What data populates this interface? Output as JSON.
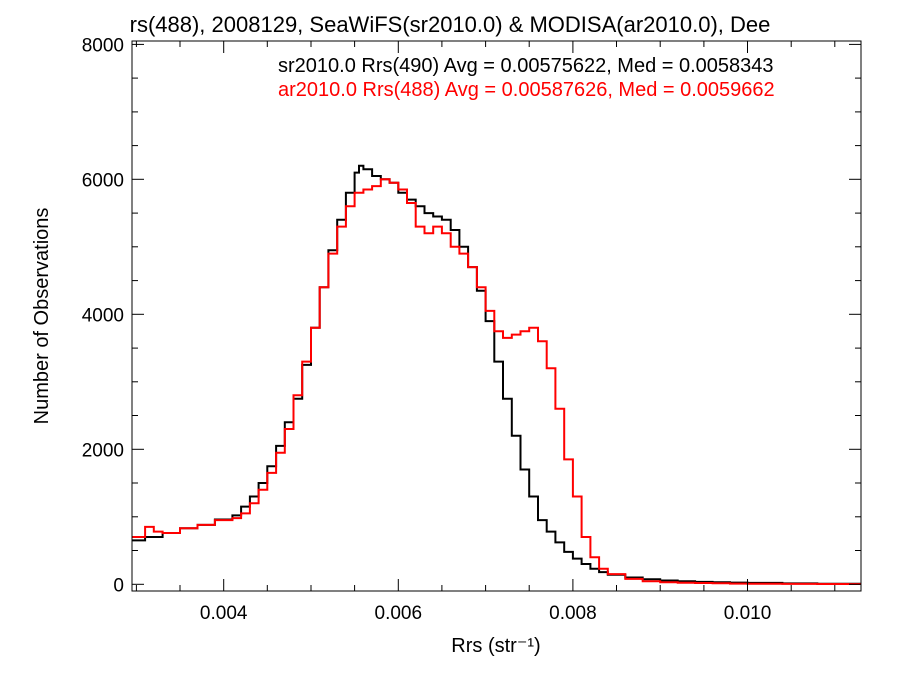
{
  "chart_data": {
    "type": "line",
    "title": "rs(488), 2008129, SeaWiFS(sr2010.0) & MODISA(ar2010.0), Dee",
    "xlabel": "Rrs (str⁻¹)",
    "ylabel": "Number of Observations",
    "xlim": [
      0.00295,
      0.0113
    ],
    "ylim": [
      -100,
      8050
    ],
    "xticks": [
      0.004,
      0.006,
      0.008,
      0.01
    ],
    "xtick_labels": [
      "0.004",
      "0.006",
      "0.008",
      "0.010"
    ],
    "yticks": [
      0,
      2000,
      4000,
      6000,
      8000
    ],
    "ytick_labels": [
      "0",
      "2000",
      "4000",
      "6000",
      "8000"
    ],
    "grid": false,
    "legend_placement": "top-right",
    "series": [
      {
        "name": "sr2010.0 Rrs(490) Avg = 0.00575622, Med = 0.0058343",
        "color": "#000000",
        "x": [
          0.00295,
          0.0031,
          0.0033,
          0.0035,
          0.0037,
          0.0039,
          0.0041,
          0.0042,
          0.0043,
          0.0044,
          0.0045,
          0.0046,
          0.0047,
          0.0048,
          0.0049,
          0.005,
          0.0051,
          0.0052,
          0.0053,
          0.0054,
          0.0055,
          0.00555,
          0.0056,
          0.0057,
          0.0058,
          0.0059,
          0.006,
          0.0061,
          0.0062,
          0.0063,
          0.0064,
          0.0065,
          0.0066,
          0.0067,
          0.0068,
          0.0069,
          0.007,
          0.0071,
          0.0072,
          0.0073,
          0.0074,
          0.0075,
          0.0076,
          0.0077,
          0.0078,
          0.0079,
          0.008,
          0.0081,
          0.0082,
          0.0083,
          0.0084,
          0.0086,
          0.0088,
          0.009,
          0.0092,
          0.0094,
          0.0096,
          0.0098,
          0.01,
          0.0104,
          0.0108,
          0.0113
        ],
        "y": [
          650,
          700,
          760,
          830,
          880,
          960,
          1020,
          1150,
          1300,
          1500,
          1750,
          2050,
          2400,
          2750,
          3250,
          3800,
          4400,
          4950,
          5400,
          5800,
          6100,
          6200,
          6150,
          6050,
          6000,
          5950,
          5800,
          5700,
          5600,
          5500,
          5450,
          5400,
          5250,
          5000,
          4700,
          4350,
          3900,
          3300,
          2750,
          2200,
          1700,
          1300,
          950,
          780,
          620,
          480,
          380,
          300,
          230,
          180,
          140,
          100,
          75,
          55,
          45,
          35,
          30,
          25,
          20,
          12,
          8,
          5
        ]
      },
      {
        "name": "ar2010.0 Rrs(488) Avg = 0.00587626, Med = 0.0059662",
        "color": "#ff0000",
        "x": [
          0.00295,
          0.0031,
          0.0032,
          0.0033,
          0.0035,
          0.0037,
          0.0039,
          0.0041,
          0.0042,
          0.0043,
          0.0044,
          0.0045,
          0.0046,
          0.0047,
          0.0048,
          0.0049,
          0.005,
          0.0051,
          0.0052,
          0.0053,
          0.0054,
          0.0055,
          0.0056,
          0.0057,
          0.0058,
          0.0059,
          0.006,
          0.0061,
          0.0062,
          0.0063,
          0.0064,
          0.0065,
          0.0066,
          0.0067,
          0.0068,
          0.0069,
          0.007,
          0.0071,
          0.0072,
          0.0073,
          0.0074,
          0.0075,
          0.0076,
          0.0077,
          0.0078,
          0.0079,
          0.008,
          0.0081,
          0.0082,
          0.0083,
          0.0084,
          0.0086,
          0.0088,
          0.009,
          0.0092,
          0.0094,
          0.0096,
          0.0098,
          0.01,
          0.0104,
          0.0108,
          0.0113
        ],
        "y": [
          700,
          850,
          780,
          760,
          830,
          880,
          950,
          980,
          1050,
          1200,
          1400,
          1650,
          1950,
          2300,
          2800,
          3300,
          3800,
          4400,
          4900,
          5300,
          5600,
          5800,
          5850,
          5900,
          6000,
          5950,
          5850,
          5650,
          5300,
          5200,
          5300,
          5200,
          5000,
          4900,
          4700,
          4400,
          4050,
          3750,
          3650,
          3700,
          3750,
          3800,
          3600,
          3200,
          2600,
          1850,
          1300,
          700,
          400,
          230,
          150,
          80,
          45,
          30,
          22,
          18,
          14,
          10,
          8,
          5,
          3,
          2
        ]
      }
    ]
  }
}
